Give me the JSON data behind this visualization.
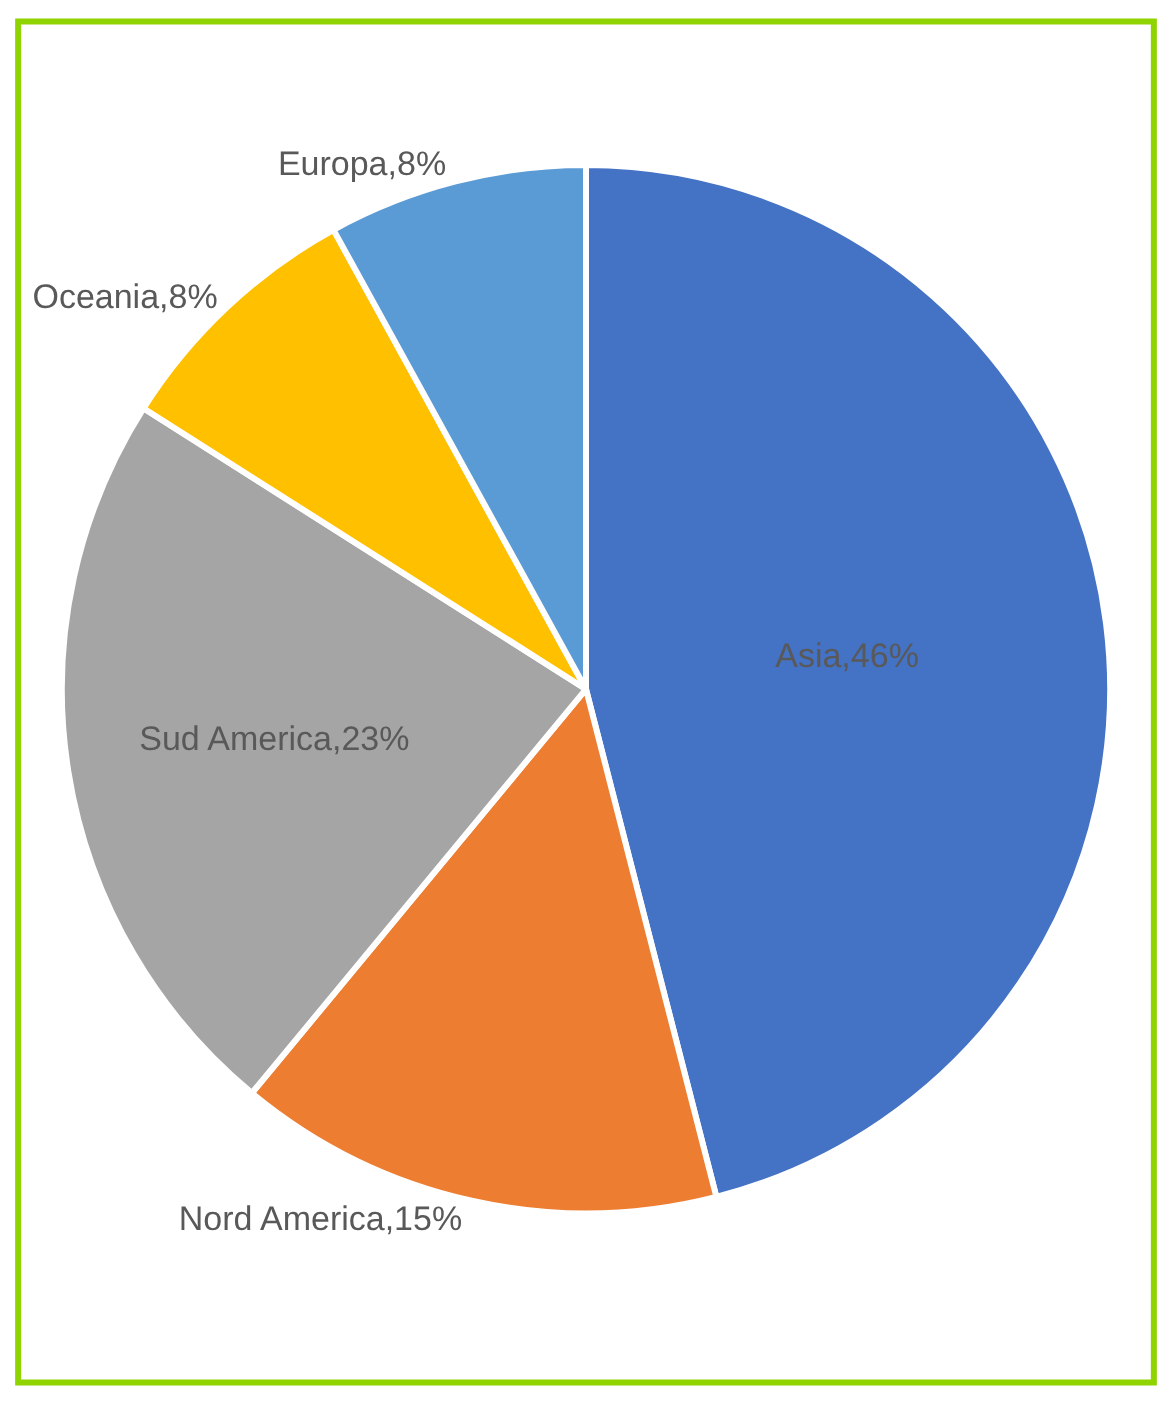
{
  "chart_data": {
    "type": "pie",
    "categories": [
      "Asia",
      "Nord America",
      "Sud America",
      "Oceania",
      "Europa"
    ],
    "values": [
      46,
      15,
      23,
      8,
      8
    ],
    "colors": [
      "#4472c4",
      "#ed7d31",
      "#a5a5a5",
      "#ffc000",
      "#5b9bd5"
    ],
    "value_labels": [
      "46%",
      "15%",
      "23%",
      "8%",
      "8%"
    ],
    "legend": false
  }
}
